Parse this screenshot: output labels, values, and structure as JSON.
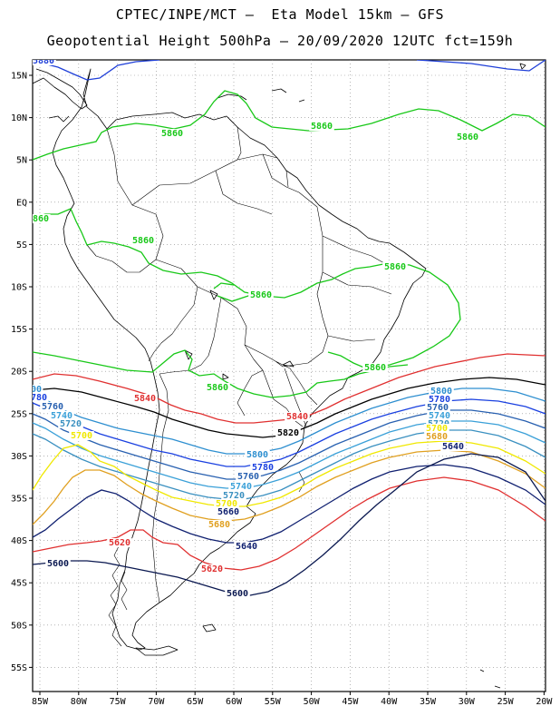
{
  "header": {
    "line1": "CPTEC/INPE/MCT –  Eta Model 15km – GFS",
    "line2": "Geopotential Height 500hPa – 20/09/2020 12UTC fct=159h"
  },
  "axes": {
    "lat_labels": [
      "15N",
      "10N",
      "5N",
      "EQ",
      "5S",
      "10S",
      "15S",
      "20S",
      "25S",
      "30S",
      "35S",
      "40S",
      "45S",
      "50S",
      "55S"
    ],
    "lon_labels": [
      "85W",
      "80W",
      "75W",
      "70W",
      "65W",
      "60W",
      "55W",
      "50W",
      "45W",
      "40W",
      "35W",
      "30W",
      "25W",
      "20W"
    ]
  },
  "colors": {
    "c5880": "#1f3fd8",
    "c5860": "#18c818",
    "c5840": "#e03030",
    "c5820": "#000000",
    "c5800": "#2e8fd0",
    "c5780": "#1a40e0",
    "c5760": "#2860b0",
    "c5740": "#3aa0d8",
    "c5720": "#3a90c0",
    "c5700": "#f0e800",
    "c5680": "#e0a020",
    "c5640": "#102070",
    "c5620": "#e03030",
    "c5600": "#0a1850"
  },
  "contour_labels": [
    {
      "text": "5880",
      "color": "c5880"
    },
    {
      "text": "5860",
      "color": "c5860"
    },
    {
      "text": "5860",
      "color": "c5860"
    },
    {
      "text": "5860",
      "color": "c5860"
    },
    {
      "text": "860",
      "color": "c5860"
    },
    {
      "text": "5860",
      "color": "c5860"
    },
    {
      "text": "5860",
      "color": "c5860"
    },
    {
      "text": "5860",
      "color": "c5860"
    },
    {
      "text": "5860",
      "color": "c5860"
    },
    {
      "text": "5860",
      "color": "c5860"
    },
    {
      "text": "5840",
      "color": "c5840"
    },
    {
      "text": "5840",
      "color": "c5840"
    },
    {
      "text": "5820",
      "color": "c5820"
    },
    {
      "text": "00",
      "color": "c5800"
    },
    {
      "text": "780",
      "color": "c5780"
    },
    {
      "text": "5760",
      "color": "c5760"
    },
    {
      "text": "5740",
      "color": "c5740"
    },
    {
      "text": "5720",
      "color": "c5720"
    },
    {
      "text": "5700",
      "color": "c5700"
    },
    {
      "text": "5800",
      "color": "c5800"
    },
    {
      "text": "5780",
      "color": "c5780"
    },
    {
      "text": "5760",
      "color": "c5760"
    },
    {
      "text": "5740",
      "color": "c5740"
    },
    {
      "text": "5720",
      "color": "c5720"
    },
    {
      "text": "5700",
      "color": "c5700"
    },
    {
      "text": "5680",
      "color": "c5680"
    },
    {
      "text": "5660",
      "color": "c5640"
    },
    {
      "text": "5640",
      "color": "c5640"
    },
    {
      "text": "5800",
      "color": "c5800"
    },
    {
      "text": "5780",
      "color": "c5780"
    },
    {
      "text": "5760",
      "color": "c5760"
    },
    {
      "text": "5740",
      "color": "c5740"
    },
    {
      "text": "5720",
      "color": "c5720"
    },
    {
      "text": "5700",
      "color": "c5700"
    },
    {
      "text": "5680",
      "color": "c5680"
    },
    {
      "text": "5640",
      "color": "c5640"
    },
    {
      "text": "5620",
      "color": "c5620"
    },
    {
      "text": "5620",
      "color": "c5620"
    },
    {
      "text": "5600",
      "color": "c5600"
    },
    {
      "text": "5600",
      "color": "c5600"
    }
  ]
}
